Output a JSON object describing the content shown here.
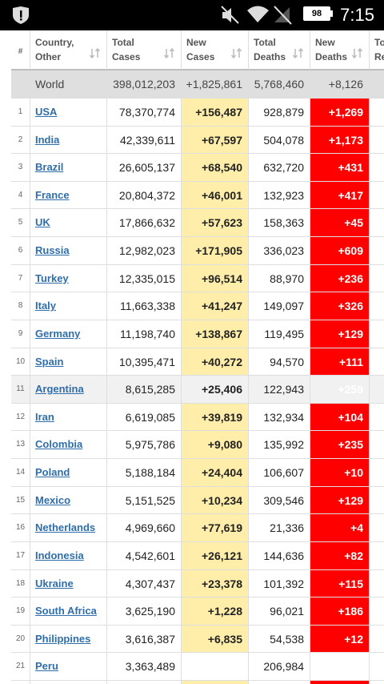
{
  "status_bar": {
    "battery": "98",
    "time": "7:15"
  },
  "table": {
    "headers": [
      "#",
      "Country, Other",
      "Total Cases",
      "New Cases",
      "Total Deaths",
      "New Deaths",
      "Total Recovered"
    ],
    "world": [
      "World",
      "398,012,203",
      "+1,825,861",
      "5,768,460",
      "+8,126"
    ],
    "rows": [
      [
        "1",
        "USA",
        "78,370,774",
        "+156,487",
        "928,879",
        "+1,269"
      ],
      [
        "2",
        "India",
        "42,339,611",
        "+67,597",
        "504,078",
        "+1,173"
      ],
      [
        "3",
        "Brazil",
        "26,605,137",
        "+68,540",
        "632,720",
        "+431"
      ],
      [
        "4",
        "France",
        "20,804,372",
        "+46,001",
        "132,923",
        "+417"
      ],
      [
        "5",
        "UK",
        "17,866,632",
        "+57,623",
        "158,363",
        "+45"
      ],
      [
        "6",
        "Russia",
        "12,982,023",
        "+171,905",
        "336,023",
        "+609"
      ],
      [
        "7",
        "Turkey",
        "12,335,015",
        "+96,514",
        "88,970",
        "+236"
      ],
      [
        "8",
        "Italy",
        "11,663,338",
        "+41,247",
        "149,097",
        "+326"
      ],
      [
        "9",
        "Germany",
        "11,198,740",
        "+138,867",
        "119,495",
        "+129"
      ],
      [
        "10",
        "Spain",
        "10,395,471",
        "+40,272",
        "94,570",
        "+111"
      ],
      [
        "11",
        "Argentina",
        "8,615,285",
        "+25,406",
        "122,943",
        "+259"
      ],
      [
        "12",
        "Iran",
        "6,619,085",
        "+39,819",
        "132,934",
        "+104"
      ],
      [
        "13",
        "Colombia",
        "5,975,786",
        "+9,080",
        "135,992",
        "+235"
      ],
      [
        "14",
        "Poland",
        "5,188,184",
        "+24,404",
        "106,607",
        "+10"
      ],
      [
        "15",
        "Mexico",
        "5,151,525",
        "+10,234",
        "309,546",
        "+129"
      ],
      [
        "16",
        "Netherlands",
        "4,969,660",
        "+77,619",
        "21,336",
        "+4"
      ],
      [
        "17",
        "Indonesia",
        "4,542,601",
        "+26,121",
        "144,636",
        "+82"
      ],
      [
        "18",
        "Ukraine",
        "4,307,437",
        "+23,378",
        "101,392",
        "+115"
      ],
      [
        "19",
        "South Africa",
        "3,625,190",
        "+1,228",
        "96,021",
        "+186"
      ],
      [
        "20",
        "Philippines",
        "3,616,387",
        "+6,835",
        "54,538",
        "+12"
      ],
      [
        "21",
        "Peru",
        "3,363,489",
        null,
        "206,984",
        null
      ]
    ]
  }
}
